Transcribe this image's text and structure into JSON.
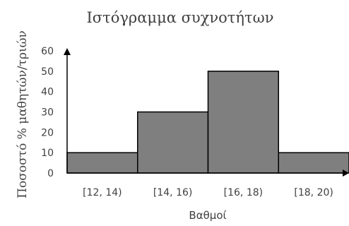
{
  "chart_data": {
    "type": "bar",
    "title": "Ιστόγραμμα συχνοτήτων",
    "xlabel": "Βαθμοί",
    "ylabel": "Ποσοστό % μαθητών/τριών",
    "categories": [
      "[12, 14)",
      "[14, 16)",
      "[16, 18)",
      "[18, 20)"
    ],
    "values": [
      10,
      30,
      50,
      10
    ],
    "ylim": [
      0,
      60
    ],
    "yticks": [
      0,
      10,
      20,
      30,
      40,
      50,
      60
    ],
    "grid": false,
    "legend": "none",
    "bar_color": "#7f7f7f",
    "bar_edge_color": "#000000",
    "text_color": "#404040"
  }
}
